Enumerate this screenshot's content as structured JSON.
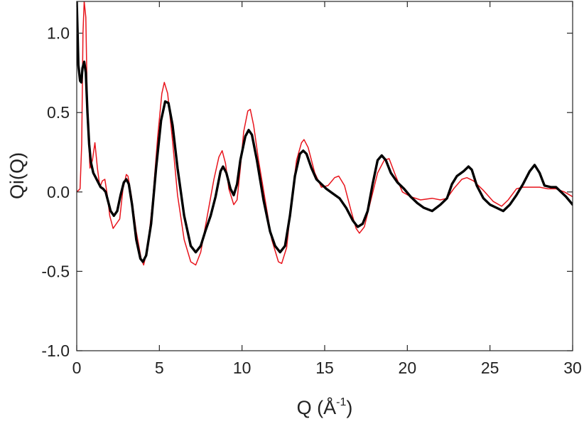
{
  "chart_data": {
    "type": "line",
    "title": "",
    "xlabel": "Q (Å",
    "xlabel_sup": "-1",
    "xlabel_close": ")",
    "ylabel": "Qi(Q)",
    "xlim": [
      0,
      30
    ],
    "ylim": [
      -1.0,
      1.2
    ],
    "xticks": [
      0,
      5,
      10,
      15,
      20,
      25,
      30
    ],
    "xtick_labels": [
      "0",
      "5",
      "10",
      "15",
      "20",
      "25",
      "30"
    ],
    "yticks": [
      -1.0,
      -0.5,
      0.0,
      0.5,
      1.0
    ],
    "ytick_labels": [
      "-1.0",
      "-0.5",
      "0.0",
      "0.5",
      "1.0"
    ],
    "grid": false,
    "legend": "none",
    "series": [
      {
        "color": "#e8141c",
        "style": "thin",
        "points": [
          [
            0.0,
            0.0
          ],
          [
            0.2,
            0.02
          ],
          [
            0.3,
            0.3
          ],
          [
            0.38,
            1.0
          ],
          [
            0.45,
            1.2
          ],
          [
            0.55,
            1.1
          ],
          [
            0.65,
            0.5
          ],
          [
            0.8,
            0.15
          ],
          [
            0.95,
            0.2
          ],
          [
            1.1,
            0.31
          ],
          [
            1.25,
            0.15
          ],
          [
            1.4,
            0.03
          ],
          [
            1.55,
            0.07
          ],
          [
            1.7,
            0.08
          ],
          [
            1.85,
            -0.02
          ],
          [
            2.0,
            -0.15
          ],
          [
            2.2,
            -0.23
          ],
          [
            2.4,
            -0.2
          ],
          [
            2.6,
            -0.17
          ],
          [
            2.8,
            0.02
          ],
          [
            3.0,
            0.11
          ],
          [
            3.1,
            0.1
          ],
          [
            3.3,
            -0.02
          ],
          [
            3.6,
            -0.25
          ],
          [
            3.9,
            -0.42
          ],
          [
            4.05,
            -0.46
          ],
          [
            4.3,
            -0.35
          ],
          [
            4.6,
            -0.05
          ],
          [
            4.9,
            0.35
          ],
          [
            5.15,
            0.62
          ],
          [
            5.3,
            0.69
          ],
          [
            5.5,
            0.62
          ],
          [
            5.8,
            0.32
          ],
          [
            6.1,
            -0.02
          ],
          [
            6.5,
            -0.3
          ],
          [
            6.9,
            -0.44
          ],
          [
            7.2,
            -0.46
          ],
          [
            7.5,
            -0.38
          ],
          [
            7.9,
            -0.15
          ],
          [
            8.3,
            0.08
          ],
          [
            8.6,
            0.22
          ],
          [
            8.8,
            0.26
          ],
          [
            9.0,
            0.18
          ],
          [
            9.2,
            0.02
          ],
          [
            9.5,
            -0.08
          ],
          [
            9.7,
            -0.05
          ],
          [
            9.9,
            0.15
          ],
          [
            10.1,
            0.38
          ],
          [
            10.35,
            0.51
          ],
          [
            10.5,
            0.52
          ],
          [
            10.7,
            0.42
          ],
          [
            11.0,
            0.2
          ],
          [
            11.4,
            -0.05
          ],
          [
            11.8,
            -0.3
          ],
          [
            12.2,
            -0.44
          ],
          [
            12.4,
            -0.45
          ],
          [
            12.7,
            -0.35
          ],
          [
            13.0,
            -0.05
          ],
          [
            13.3,
            0.2
          ],
          [
            13.6,
            0.31
          ],
          [
            13.75,
            0.33
          ],
          [
            14.0,
            0.28
          ],
          [
            14.4,
            0.12
          ],
          [
            14.8,
            0.03
          ],
          [
            15.2,
            0.04
          ],
          [
            15.6,
            0.09
          ],
          [
            15.85,
            0.1
          ],
          [
            16.2,
            0.04
          ],
          [
            16.6,
            -0.12
          ],
          [
            16.9,
            -0.23
          ],
          [
            17.1,
            -0.26
          ],
          [
            17.4,
            -0.22
          ],
          [
            17.8,
            -0.05
          ],
          [
            18.2,
            0.12
          ],
          [
            18.6,
            0.2
          ],
          [
            18.9,
            0.21
          ],
          [
            19.3,
            0.1
          ],
          [
            19.7,
            0.0
          ],
          [
            20.2,
            -0.03
          ],
          [
            20.8,
            -0.05
          ],
          [
            21.5,
            -0.04
          ],
          [
            22.0,
            -0.05
          ],
          [
            22.4,
            -0.04
          ],
          [
            22.8,
            0.02
          ],
          [
            23.3,
            0.08
          ],
          [
            23.6,
            0.09
          ],
          [
            24.0,
            0.07
          ],
          [
            24.6,
            0.01
          ],
          [
            25.2,
            -0.06
          ],
          [
            25.7,
            -0.09
          ],
          [
            26.1,
            -0.05
          ],
          [
            26.6,
            0.02
          ],
          [
            27.0,
            0.03
          ],
          [
            27.5,
            0.03
          ],
          [
            28.0,
            0.03
          ],
          [
            28.5,
            0.02
          ],
          [
            29.0,
            0.02
          ],
          [
            29.5,
            0.0
          ],
          [
            30.0,
            -0.03
          ]
        ]
      },
      {
        "color": "#000000",
        "style": "thick",
        "points": [
          [
            0.0,
            1.2
          ],
          [
            0.05,
            1.0
          ],
          [
            0.1,
            0.8
          ],
          [
            0.2,
            0.7
          ],
          [
            0.28,
            0.69
          ],
          [
            0.35,
            0.78
          ],
          [
            0.45,
            0.82
          ],
          [
            0.55,
            0.75
          ],
          [
            0.65,
            0.5
          ],
          [
            0.75,
            0.3
          ],
          [
            0.85,
            0.19
          ],
          [
            1.0,
            0.12
          ],
          [
            1.15,
            0.09
          ],
          [
            1.3,
            0.06
          ],
          [
            1.45,
            0.03
          ],
          [
            1.6,
            0.02
          ],
          [
            1.75,
            0.0
          ],
          [
            1.9,
            -0.06
          ],
          [
            2.05,
            -0.12
          ],
          [
            2.25,
            -0.15
          ],
          [
            2.45,
            -0.12
          ],
          [
            2.65,
            -0.02
          ],
          [
            2.85,
            0.06
          ],
          [
            3.0,
            0.08
          ],
          [
            3.15,
            0.05
          ],
          [
            3.35,
            -0.08
          ],
          [
            3.6,
            -0.3
          ],
          [
            3.85,
            -0.42
          ],
          [
            4.0,
            -0.44
          ],
          [
            4.2,
            -0.4
          ],
          [
            4.5,
            -0.2
          ],
          [
            4.8,
            0.15
          ],
          [
            5.1,
            0.45
          ],
          [
            5.35,
            0.57
          ],
          [
            5.55,
            0.56
          ],
          [
            5.8,
            0.42
          ],
          [
            6.1,
            0.15
          ],
          [
            6.5,
            -0.15
          ],
          [
            6.9,
            -0.34
          ],
          [
            7.2,
            -0.38
          ],
          [
            7.5,
            -0.34
          ],
          [
            7.8,
            -0.24
          ],
          [
            8.1,
            -0.15
          ],
          [
            8.4,
            -0.03
          ],
          [
            8.7,
            0.13
          ],
          [
            8.85,
            0.16
          ],
          [
            9.05,
            0.12
          ],
          [
            9.3,
            0.02
          ],
          [
            9.5,
            -0.02
          ],
          [
            9.7,
            0.05
          ],
          [
            9.9,
            0.2
          ],
          [
            10.2,
            0.35
          ],
          [
            10.4,
            0.39
          ],
          [
            10.6,
            0.36
          ],
          [
            10.9,
            0.2
          ],
          [
            11.3,
            -0.05
          ],
          [
            11.7,
            -0.25
          ],
          [
            12.0,
            -0.34
          ],
          [
            12.3,
            -0.38
          ],
          [
            12.6,
            -0.34
          ],
          [
            12.9,
            -0.15
          ],
          [
            13.2,
            0.1
          ],
          [
            13.5,
            0.24
          ],
          [
            13.7,
            0.26
          ],
          [
            13.9,
            0.24
          ],
          [
            14.2,
            0.15
          ],
          [
            14.5,
            0.08
          ],
          [
            14.8,
            0.05
          ],
          [
            15.1,
            0.02
          ],
          [
            15.5,
            -0.01
          ],
          [
            15.9,
            -0.04
          ],
          [
            16.3,
            -0.1
          ],
          [
            16.7,
            -0.18
          ],
          [
            17.0,
            -0.22
          ],
          [
            17.3,
            -0.2
          ],
          [
            17.6,
            -0.12
          ],
          [
            17.9,
            0.05
          ],
          [
            18.2,
            0.2
          ],
          [
            18.45,
            0.23
          ],
          [
            18.7,
            0.2
          ],
          [
            19.0,
            0.12
          ],
          [
            19.4,
            0.06
          ],
          [
            19.8,
            0.02
          ],
          [
            20.2,
            -0.03
          ],
          [
            20.6,
            -0.07
          ],
          [
            21.0,
            -0.1
          ],
          [
            21.5,
            -0.12
          ],
          [
            22.0,
            -0.08
          ],
          [
            22.4,
            -0.04
          ],
          [
            22.7,
            0.05
          ],
          [
            23.0,
            0.1
          ],
          [
            23.4,
            0.13
          ],
          [
            23.7,
            0.16
          ],
          [
            23.9,
            0.14
          ],
          [
            24.2,
            0.04
          ],
          [
            24.6,
            -0.04
          ],
          [
            25.0,
            -0.08
          ],
          [
            25.4,
            -0.1
          ],
          [
            25.8,
            -0.12
          ],
          [
            26.2,
            -0.08
          ],
          [
            26.6,
            -0.02
          ],
          [
            27.0,
            0.05
          ],
          [
            27.4,
            0.13
          ],
          [
            27.7,
            0.17
          ],
          [
            28.0,
            0.12
          ],
          [
            28.3,
            0.04
          ],
          [
            28.7,
            0.03
          ],
          [
            29.0,
            0.03
          ],
          [
            29.3,
            0.0
          ],
          [
            29.6,
            -0.03
          ],
          [
            30.0,
            -0.08
          ]
        ]
      }
    ]
  }
}
